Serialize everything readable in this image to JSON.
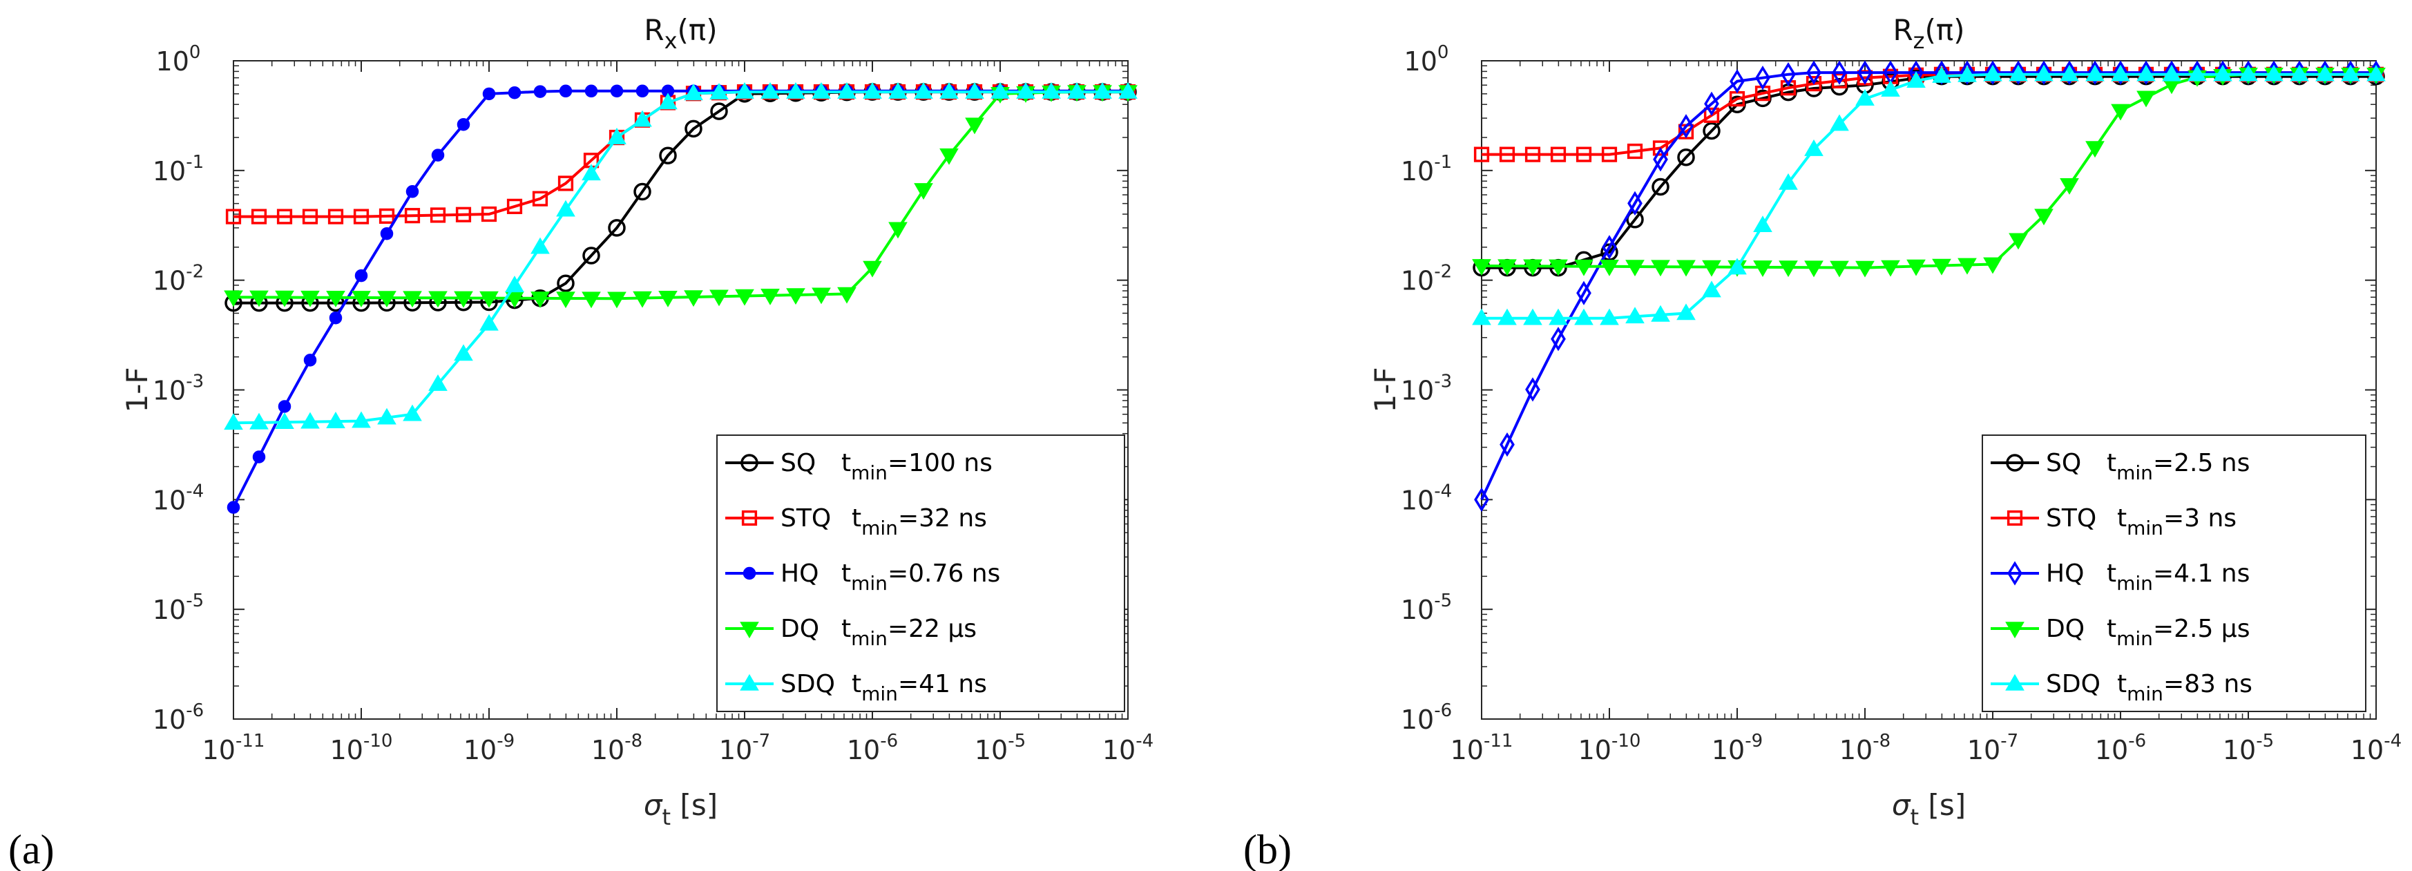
{
  "chart_data": [
    {
      "type": "line",
      "panel_label": "(a)",
      "title": "R",
      "title_sub": "x",
      "title_suffix": "(π)",
      "xlabel": "σ",
      "xlabel_sub": "t",
      "xlabel_suffix": " [s]",
      "ylabel": "1-F",
      "xscale": "log",
      "yscale": "log",
      "xlim": [
        1e-11,
        0.0001
      ],
      "ylim": [
        1e-06,
        1
      ],
      "x_ticks": [
        -11,
        -10,
        -9,
        -8,
        -7,
        -6,
        -5,
        -4
      ],
      "y_ticks": [
        -6,
        -5,
        -4,
        -3,
        -2,
        -1,
        0
      ],
      "tick_base": "10",
      "legend_position": "bottom-right",
      "series": [
        {
          "name": "SQ",
          "t_label": "t",
          "t_sub": "min",
          "value": "=100 ns",
          "color": "#000000",
          "marker": "circle",
          "points": [
            [
              -11,
              0.0062
            ],
            [
              -10,
              0.0062
            ],
            [
              -9,
              0.0063
            ],
            [
              -8.5,
              0.007
            ],
            [
              -8,
              0.03
            ],
            [
              -7.5,
              0.2
            ],
            [
              -7,
              0.5
            ],
            [
              -6,
              0.52
            ],
            [
              -4,
              0.52
            ]
          ]
        },
        {
          "name": "STQ",
          "t_label": "t",
          "t_sub": "min",
          "value": "=32 ns",
          "color": "#ff0000",
          "marker": "square",
          "points": [
            [
              -11,
              0.038
            ],
            [
              -10,
              0.038
            ],
            [
              -9,
              0.04
            ],
            [
              -8.5,
              0.06
            ],
            [
              -8,
              0.2
            ],
            [
              -7.5,
              0.5
            ],
            [
              -7,
              0.52
            ],
            [
              -4,
              0.52
            ]
          ]
        },
        {
          "name": "HQ",
          "t_label": "t",
          "t_sub": "min",
          "value": "=0.76 ns",
          "color": "#0000ff",
          "marker": "dot",
          "points": [
            [
              -11,
              8.5e-05
            ],
            [
              -10.5,
              0.0012
            ],
            [
              -10,
              0.011
            ],
            [
              -9.5,
              0.1
            ],
            [
              -9,
              0.5
            ],
            [
              -8.5,
              0.53
            ],
            [
              -4,
              0.53
            ]
          ]
        },
        {
          "name": "DQ",
          "t_label": "t",
          "t_sub": "min",
          "value": "=22 μs",
          "color": "#00ff00",
          "marker": "triangle-down",
          "points": [
            [
              -11,
              0.007
            ],
            [
              -8,
              0.0068
            ],
            [
              -6.2,
              0.0075
            ],
            [
              -6,
              0.013
            ],
            [
              -5.5,
              0.1
            ],
            [
              -5,
              0.5
            ],
            [
              -4.5,
              0.52
            ],
            [
              -4,
              0.52
            ]
          ]
        },
        {
          "name": "SDQ",
          "t_label": "t",
          "t_sub": "min",
          "value": "=41 ns",
          "color": "#00ffff",
          "marker": "triangle-up",
          "points": [
            [
              -11,
              0.0005
            ],
            [
              -10,
              0.00052
            ],
            [
              -9.6,
              0.0006
            ],
            [
              -9,
              0.004
            ],
            [
              -8.5,
              0.03
            ],
            [
              -8,
              0.2
            ],
            [
              -7.5,
              0.5
            ],
            [
              -7,
              0.52
            ],
            [
              -4,
              0.52
            ]
          ]
        }
      ]
    },
    {
      "type": "line",
      "panel_label": "(b)",
      "title": "R",
      "title_sub": "z",
      "title_suffix": "(π)",
      "xlabel": "σ",
      "xlabel_sub": "t",
      "xlabel_suffix": " [s]",
      "ylabel": "1-F",
      "xscale": "log",
      "yscale": "log",
      "xlim": [
        1e-11,
        0.0001
      ],
      "ylim": [
        1e-06,
        1
      ],
      "x_ticks": [
        -11,
        -10,
        -9,
        -8,
        -7,
        -6,
        -5,
        -4
      ],
      "y_ticks": [
        -6,
        -5,
        -4,
        -3,
        -2,
        -1,
        0
      ],
      "tick_base": "10",
      "legend_position": "bottom-right",
      "series": [
        {
          "name": "SQ",
          "t_label": "t",
          "t_sub": "min",
          "value": "=2.5 ns",
          "color": "#000000",
          "marker": "circle",
          "points": [
            [
              -11,
              0.013
            ],
            [
              -10.4,
              0.013
            ],
            [
              -10,
              0.018
            ],
            [
              -9.5,
              0.1
            ],
            [
              -9,
              0.4
            ],
            [
              -8.5,
              0.55
            ],
            [
              -8,
              0.6
            ],
            [
              -7.5,
              0.72
            ],
            [
              -4,
              0.72
            ]
          ]
        },
        {
          "name": "STQ",
          "t_label": "t",
          "t_sub": "min",
          "value": "=3 ns",
          "color": "#ff0000",
          "marker": "square",
          "points": [
            [
              -11,
              0.14
            ],
            [
              -10,
              0.14
            ],
            [
              -9.6,
              0.16
            ],
            [
              -9,
              0.45
            ],
            [
              -8.5,
              0.6
            ],
            [
              -8,
              0.7
            ],
            [
              -7.5,
              0.75
            ],
            [
              -4,
              0.75
            ]
          ]
        },
        {
          "name": "HQ",
          "t_label": "t",
          "t_sub": "min",
          "value": "=4.1 ns",
          "color": "#0000ff",
          "marker": "diamond",
          "points": [
            [
              -11,
              0.0001
            ],
            [
              -10.5,
              0.0018
            ],
            [
              -10,
              0.02
            ],
            [
              -9.5,
              0.2
            ],
            [
              -9,
              0.65
            ],
            [
              -8.5,
              0.78
            ],
            [
              -4,
              0.78
            ]
          ]
        },
        {
          "name": "DQ",
          "t_label": "t",
          "t_sub": "min",
          "value": "=2.5 μs",
          "color": "#00ff00",
          "marker": "triangle-down",
          "points": [
            [
              -11,
              0.0135
            ],
            [
              -8,
              0.013
            ],
            [
              -7,
              0.014
            ],
            [
              -6.5,
              0.05
            ],
            [
              -6,
              0.35
            ],
            [
              -5.5,
              0.7
            ],
            [
              -5,
              0.75
            ],
            [
              -4,
              0.75
            ]
          ]
        },
        {
          "name": "SDQ",
          "t_label": "t",
          "t_sub": "min",
          "value": "=83 ns",
          "color": "#00ffff",
          "marker": "triangle-up",
          "points": [
            [
              -11,
              0.0045
            ],
            [
              -10,
              0.0045
            ],
            [
              -9.4,
              0.005
            ],
            [
              -9,
              0.013
            ],
            [
              -8.5,
              0.12
            ],
            [
              -8,
              0.45
            ],
            [
              -7.5,
              0.72
            ],
            [
              -7,
              0.75
            ],
            [
              -4,
              0.75
            ]
          ]
        }
      ]
    }
  ]
}
